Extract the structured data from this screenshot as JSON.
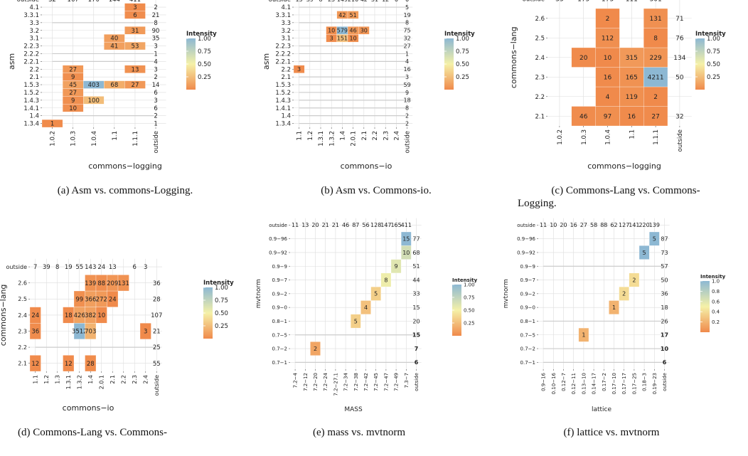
{
  "colors": {
    "low": "#f08a4b",
    "mid": "#f5f1a8",
    "high": "#8db8d3",
    "grid": "#dddddd",
    "refline": "#cccccc"
  },
  "chart_data": [
    {
      "type": "heatmap",
      "xlabel": "commons−logging",
      "ylabel": "asm",
      "x_categories": [
        "1.0.2",
        "1.0.3",
        "1.0.4",
        "1.1",
        "1.1.1",
        "outside"
      ],
      "y_categories": [
        "1.3.4",
        "1.4",
        "1.4.1",
        "1.4.3",
        "1.5.2",
        "1.5.3",
        "2.1",
        "2.2",
        "2.2.1",
        "2.2.2",
        "2.2.3",
        "3.1",
        "3.2",
        "3.3",
        "3.3.1",
        "4.1",
        "outside"
      ],
      "top_totals": [
        "32",
        "167",
        "170",
        "144",
        "411"
      ],
      "right_totals": [
        "1",
        "2",
        "6",
        "3",
        "6",
        "14",
        "2",
        "3",
        "4",
        "1",
        "3",
        "35",
        "90",
        "8",
        "21",
        "2"
      ],
      "cells": [
        {
          "x": "1.0.2",
          "y": "1.3.4",
          "v": 1,
          "label": "1"
        },
        {
          "x": "1.0.3",
          "y": "1.4.1",
          "v": 10,
          "label": "10"
        },
        {
          "x": "1.0.3",
          "y": "1.4.3",
          "v": 9,
          "label": "9"
        },
        {
          "x": "1.0.3",
          "y": "1.5.2",
          "v": 27,
          "label": "27"
        },
        {
          "x": "1.0.3",
          "y": "1.5.3",
          "v": 45,
          "label": "45"
        },
        {
          "x": "1.0.3",
          "y": "2.1",
          "v": 9,
          "label": "9"
        },
        {
          "x": "1.0.3",
          "y": "2.2",
          "v": 27,
          "label": "27"
        },
        {
          "x": "1.0.4",
          "y": "1.4.3",
          "v": 100,
          "label": "100"
        },
        {
          "x": "1.0.4",
          "y": "1.5.3",
          "v": 403,
          "label": "403"
        },
        {
          "x": "1.1",
          "y": "1.5.3",
          "v": 68,
          "label": "68"
        },
        {
          "x": "1.1",
          "y": "2.2.3",
          "v": 41,
          "label": "41"
        },
        {
          "x": "1.1",
          "y": "3.1",
          "v": 40,
          "label": "40"
        },
        {
          "x": "1.1.1",
          "y": "1.5.3",
          "v": 27,
          "label": "27"
        },
        {
          "x": "1.1.1",
          "y": "2.2",
          "v": 13,
          "label": "13"
        },
        {
          "x": "1.1.1",
          "y": "2.2.3",
          "v": 53,
          "label": "53"
        },
        {
          "x": "1.1.1",
          "y": "3.2",
          "v": 31,
          "label": "31"
        },
        {
          "x": "1.1.1",
          "y": "3.3.1",
          "v": 6,
          "label": "6"
        },
        {
          "x": "1.1.1",
          "y": "4.1",
          "v": 3,
          "label": "3"
        }
      ],
      "legend": {
        "title": "Intensity",
        "ticks": [
          "1.00",
          "0.75",
          "0.50",
          "0.25"
        ]
      },
      "caption": "(a) Asm vs. commons-Logging."
    },
    {
      "type": "heatmap",
      "xlabel": "commons−io",
      "ylabel": "asm",
      "x_categories": [
        "1.1",
        "1.2",
        "1.3.1",
        "1.3.2",
        "1.4",
        "2.0.1",
        "2.1",
        "2.2",
        "2.3",
        "2.4",
        "outside"
      ],
      "y_categories": [
        "1.3.4",
        "1.4",
        "1.4.1",
        "1.4.3",
        "1.5.2",
        "1.5.3",
        "2.1",
        "2.2",
        "2.2.1",
        "2.2.2",
        "2.2.3",
        "3.1",
        "3.2",
        "3.3",
        "3.3.1",
        "4.1",
        "outside"
      ],
      "top_totals": [
        "15",
        "39",
        "8",
        "25",
        "149",
        "210",
        "42",
        "31",
        "12",
        "6",
        "6"
      ],
      "right_totals": [
        "2",
        "2",
        "8",
        "18",
        "9",
        "59",
        "3",
        "16",
        "4",
        "1",
        "27",
        "32",
        "75",
        "8",
        "19",
        "5"
      ],
      "cells": [
        {
          "x": "1.1",
          "y": "2.2",
          "v": 3,
          "label": "3"
        },
        {
          "x": "1.3.2",
          "y": "3.1",
          "v": 3,
          "label": "3"
        },
        {
          "x": "1.3.2",
          "y": "3.2",
          "v": 10,
          "label": "10"
        },
        {
          "x": "1.4",
          "y": "3.1",
          "v": 151,
          "label": "151"
        },
        {
          "x": "1.4",
          "y": "3.2",
          "v": 579,
          "label": "579"
        },
        {
          "x": "1.4",
          "y": "3.3.1",
          "v": 42,
          "label": "42"
        },
        {
          "x": "2.0.1",
          "y": "3.1",
          "v": 10,
          "label": "10"
        },
        {
          "x": "2.0.1",
          "y": "3.2",
          "v": 46,
          "label": "46"
        },
        {
          "x": "2.0.1",
          "y": "3.3.1",
          "v": 51,
          "label": "51"
        },
        {
          "x": "2.1",
          "y": "3.2",
          "v": 30,
          "label": "30"
        }
      ],
      "legend": {
        "title": "Intensity",
        "ticks": [
          "1.00",
          "0.75",
          "0.50",
          "0.25"
        ]
      },
      "caption": "(b) Asm vs. Commons-io."
    },
    {
      "type": "heatmap",
      "xlabel": "commons−logging",
      "ylabel": "commons−lang",
      "x_categories": [
        "1.0.2",
        "1.0.3",
        "1.0.4",
        "1.1",
        "1.1.1",
        "outside"
      ],
      "y_categories": [
        "2.1",
        "2.2",
        "2.3",
        "2.4",
        "2.5",
        "2.6",
        "outside"
      ],
      "top_totals": [
        "33",
        "175",
        "173",
        "111",
        "301"
      ],
      "right_totals": [
        "32",
        "",
        "50",
        "134",
        "76",
        "71"
      ],
      "cells": [
        {
          "x": "1.0.3",
          "y": "2.1",
          "v": 46,
          "label": "46"
        },
        {
          "x": "1.0.3",
          "y": "2.4",
          "v": 20,
          "label": "20"
        },
        {
          "x": "1.0.4",
          "y": "2.1",
          "v": 97,
          "label": "97"
        },
        {
          "x": "1.0.4",
          "y": "2.2",
          "v": 4,
          "label": "4"
        },
        {
          "x": "1.0.4",
          "y": "2.3",
          "v": 16,
          "label": "16"
        },
        {
          "x": "1.0.4",
          "y": "2.4",
          "v": 10,
          "label": "10"
        },
        {
          "x": "1.0.4",
          "y": "2.5",
          "v": 112,
          "label": "112"
        },
        {
          "x": "1.0.4",
          "y": "2.6",
          "v": 2,
          "label": "2"
        },
        {
          "x": "1.1",
          "y": "2.1",
          "v": 16,
          "label": "16"
        },
        {
          "x": "1.1",
          "y": "2.2",
          "v": 119,
          "label": "119"
        },
        {
          "x": "1.1",
          "y": "2.3",
          "v": 165,
          "label": "165"
        },
        {
          "x": "1.1",
          "y": "2.4",
          "v": 315,
          "label": "315"
        },
        {
          "x": "1.1.1",
          "y": "2.1",
          "v": 27,
          "label": "27"
        },
        {
          "x": "1.1.1",
          "y": "2.2",
          "v": 2,
          "label": "2"
        },
        {
          "x": "1.1.1",
          "y": "2.3",
          "v": 4211,
          "label": "4211"
        },
        {
          "x": "1.1.1",
          "y": "2.4",
          "v": 229,
          "label": "229"
        },
        {
          "x": "1.1.1",
          "y": "2.5",
          "v": 8,
          "label": "8"
        },
        {
          "x": "1.1.1",
          "y": "2.6",
          "v": 131,
          "label": "131"
        }
      ],
      "legend": {
        "title": "Intensity",
        "ticks": [
          "1.00",
          "0.75",
          "0.50",
          "0.25"
        ]
      },
      "caption_lines": [
        "(c) Commons-Lang vs. Commons-",
        "Logging."
      ]
    },
    {
      "type": "heatmap",
      "xlabel": "commons−io",
      "ylabel": "commons−lang",
      "x_categories": [
        "1.1",
        "1.2",
        "1.3",
        "1.3.1",
        "1.3.2",
        "1.4",
        "2.0.1",
        "2.1",
        "2.2",
        "2.3",
        "2.4",
        "outside"
      ],
      "y_categories": [
        "2.1",
        "2.2",
        "2.3",
        "2.4",
        "2.5",
        "2.6",
        "outside"
      ],
      "top_totals": [
        "7",
        "39",
        "8",
        "19",
        "55",
        "143",
        "24",
        "13",
        "",
        "6",
        "3"
      ],
      "right_totals": [
        "55",
        "25",
        "21",
        "107",
        "28",
        "36"
      ],
      "cells": [
        {
          "x": "1.1",
          "y": "2.1",
          "v": 12,
          "label": "12"
        },
        {
          "x": "1.1",
          "y": "2.3",
          "v": 36,
          "label": "36"
        },
        {
          "x": "1.1",
          "y": "2.4",
          "v": 24,
          "label": "24"
        },
        {
          "x": "1.3.1",
          "y": "2.1",
          "v": 12,
          "label": "12"
        },
        {
          "x": "1.3.1",
          "y": "2.4",
          "v": 18,
          "label": "18"
        },
        {
          "x": "1.3.2",
          "y": "2.3",
          "v": 3512,
          "label": "3512"
        },
        {
          "x": "1.3.2",
          "y": "2.4",
          "v": 426,
          "label": "426"
        },
        {
          "x": "1.3.2",
          "y": "2.5",
          "v": 99,
          "label": "99"
        },
        {
          "x": "1.4",
          "y": "2.1",
          "v": 28,
          "label": "28"
        },
        {
          "x": "1.4",
          "y": "2.3",
          "v": 703,
          "label": "703"
        },
        {
          "x": "1.4",
          "y": "2.4",
          "v": 382,
          "label": "382"
        },
        {
          "x": "1.4",
          "y": "2.5",
          "v": 366,
          "label": "366"
        },
        {
          "x": "1.4",
          "y": "2.6",
          "v": 139,
          "label": "139"
        },
        {
          "x": "2.0.1",
          "y": "2.4",
          "v": 10,
          "label": "10"
        },
        {
          "x": "2.0.1",
          "y": "2.5",
          "v": 272,
          "label": "272"
        },
        {
          "x": "2.0.1",
          "y": "2.6",
          "v": 88,
          "label": "88"
        },
        {
          "x": "2.1",
          "y": "2.5",
          "v": 24,
          "label": "24"
        },
        {
          "x": "2.1",
          "y": "2.6",
          "v": 209,
          "label": "209"
        },
        {
          "x": "2.2",
          "y": "2.6",
          "v": 131,
          "label": "131"
        },
        {
          "x": "2.4",
          "y": "2.3",
          "v": 3,
          "label": "3"
        }
      ],
      "legend": {
        "title": "Intensity",
        "ticks": [
          "1.00",
          "0.75",
          "0.50",
          "0.25"
        ]
      },
      "caption_lines": [
        "(d) Commons-Lang vs. Commons-",
        "io."
      ]
    },
    {
      "type": "heatmap",
      "xlabel": "MASS",
      "ylabel": "mvtnorm",
      "x_categories": [
        "7.2−4",
        "7.2−12",
        "7.2−20",
        "7.2−24",
        "7.2−27.1",
        "7.2−34",
        "7.2−38",
        "7.2−42",
        "7.2−45",
        "7.2−47",
        "7.2−49",
        "7.3−7",
        "outside"
      ],
      "y_categories": [
        "0.7−1",
        "0.7−2",
        "0.7−5",
        "0.8−1",
        "0.9−0",
        "0.9−2",
        "0.9−7",
        "0.9−9",
        "0.9−92",
        "0.9−96",
        "outside"
      ],
      "top_totals": [
        "11",
        "13",
        "20",
        "21",
        "21",
        "46",
        "87",
        "56",
        "128",
        "147",
        "165",
        "411"
      ],
      "right_totals": [
        "6",
        "7",
        "15",
        "20",
        "15",
        "33",
        "44",
        "51",
        "68",
        "77"
      ],
      "bold_right": [
        "6",
        "7",
        "15"
      ],
      "cells": [
        {
          "x": "7.2−20",
          "y": "0.7−2",
          "v": 2,
          "label": "2"
        },
        {
          "x": "7.2−38",
          "y": "0.8−1",
          "v": 5,
          "label": "5"
        },
        {
          "x": "7.2−42",
          "y": "0.9−0",
          "v": 4,
          "label": "4"
        },
        {
          "x": "7.2−45",
          "y": "0.9−2",
          "v": 5,
          "label": "5"
        },
        {
          "x": "7.2−47",
          "y": "0.9−7",
          "v": 8,
          "label": "8"
        },
        {
          "x": "7.2−49",
          "y": "0.9−9",
          "v": 9,
          "label": "9"
        },
        {
          "x": "7.3−7",
          "y": "0.9−92",
          "v": 10,
          "label": "10"
        },
        {
          "x": "7.3−7",
          "y": "0.9−96",
          "v": 15,
          "label": "15"
        }
      ],
      "legend": {
        "title": "Intensity",
        "ticks": [
          "1.00",
          "0.75",
          "0.50",
          "0.25"
        ]
      },
      "caption": "(e) mass vs. mvtnorm"
    },
    {
      "type": "heatmap",
      "xlabel": "lattice",
      "ylabel": "mvtnorm",
      "x_categories": [
        "0.9−16",
        "0.10−16",
        "0.12−7",
        "0.12−11",
        "0.13−10",
        "0.14−17",
        "0.17−2",
        "0.17−10",
        "0.17−17",
        "0.17−25",
        "0.18−3",
        "0.19−23",
        "outside"
      ],
      "y_categories": [
        "0.7−1",
        "0.7−2",
        "0.7−5",
        "0.8−1",
        "0.9−0",
        "0.9−2",
        "0.9−7",
        "0.9−9",
        "0.9−92",
        "0.9−96",
        "outside"
      ],
      "top_totals": [
        "11",
        "10",
        "20",
        "16",
        "27",
        "58",
        "88",
        "62",
        "127",
        "141",
        "220",
        "139"
      ],
      "right_totals": [
        "6",
        "10",
        "17",
        "26",
        "18",
        "36",
        "50",
        "57",
        "73",
        "87"
      ],
      "bold_right": [
        "6",
        "10",
        "17"
      ],
      "cells": [
        {
          "x": "0.13−10",
          "y": "0.7−5",
          "v": 1,
          "label": "1"
        },
        {
          "x": "0.17−10",
          "y": "0.9−0",
          "v": 1,
          "label": "1"
        },
        {
          "x": "0.17−17",
          "y": "0.9−2",
          "v": 2,
          "label": "2"
        },
        {
          "x": "0.17−25",
          "y": "0.9−7",
          "v": 2,
          "label": "2"
        },
        {
          "x": "0.18−3",
          "y": "0.9−92",
          "v": 5,
          "label": "5"
        },
        {
          "x": "0.19−23",
          "y": "0.9−96",
          "v": 5,
          "label": "5"
        }
      ],
      "legend": {
        "title": "Intensity",
        "ticks": [
          "1.0",
          "0.8",
          "0.6",
          "0.4",
          "0.2"
        ]
      },
      "caption": "(f) lattice vs. mvtnorm"
    }
  ]
}
